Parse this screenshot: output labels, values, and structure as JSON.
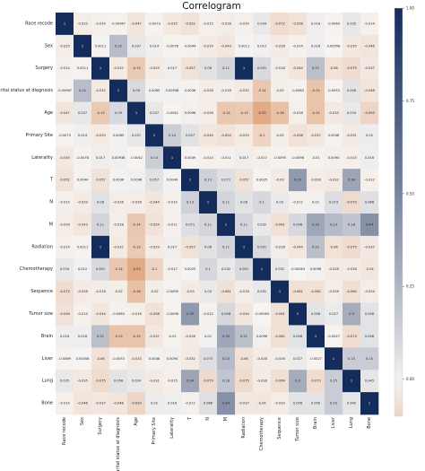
{
  "chart_data": {
    "type": "heatmap",
    "title": "Correlogram",
    "labels": [
      "Race recode",
      "Sex",
      "Surgery",
      "Marital status at diagnosis",
      "Age",
      "Primary Site",
      "Laterality",
      "T",
      "N",
      "M",
      "Radiation",
      "Chemotherapy",
      "Sequence",
      "Tumor size",
      "Brain",
      "Liver",
      "Lung",
      "Bone"
    ],
    "values": [
      [
        1,
        -0.025,
        -0.014,
        -0.00967,
        -0.047,
        -0.0073,
        -0.035,
        -0.052,
        -0.015,
        -0.026,
        -0.014,
        0.034,
        -0.072,
        -0.056,
        0.018,
        -0.0069,
        0.035,
        -0.014
      ],
      [
        -0.025,
        1,
        0.0011,
        0.22,
        0.037,
        0.014,
        -0.0078,
        0.0044,
        -0.029,
        -0.043,
        0.0011,
        0.012,
        -0.028,
        -0.014,
        0.018,
        0.00058,
        -0.035,
        -0.046
      ],
      [
        -0.014,
        0.0011,
        1,
        -0.032,
        -0.13,
        -0.029,
        0.017,
        -0.057,
        0.06,
        0.11,
        1,
        0.091,
        -0.018,
        -0.044,
        0.21,
        -0.06,
        -0.075,
        -0.037
      ],
      [
        -0.00967,
        0.22,
        -0.032,
        1,
        0.09,
        0.0065,
        0.00938,
        0.0036,
        -0.026,
        -0.018,
        -0.032,
        -0.14,
        -0.02,
        -0.0083,
        -0.15,
        -0.0053,
        0.056,
        -0.048
      ],
      [
        -0.047,
        0.037,
        -0.13,
        0.09,
        1,
        0.037,
        -0.0042,
        0.0096,
        -0.026,
        -0.14,
        -0.13,
        -0.23,
        -0.16,
        -0.016,
        -0.15,
        -0.033,
        0.034,
        -0.093
      ],
      [
        -0.0073,
        0.014,
        -0.029,
        0.0065,
        0.037,
        1,
        0.14,
        0.057,
        -0.044,
        -0.054,
        -0.029,
        -0.1,
        -0.02,
        -0.058,
        -0.037,
        0.0048,
        -0.031,
        0.02
      ],
      [
        -0.035,
        -0.0078,
        0.017,
        0.00938,
        -0.0042,
        0.14,
        1,
        0.0049,
        -0.014,
        -0.011,
        0.017,
        -0.017,
        -0.0095,
        -0.0098,
        -0.01,
        0.0094,
        -0.015,
        0.016
      ],
      [
        -0.052,
        0.0044,
        -0.057,
        0.0036,
        0.0096,
        0.057,
        0.0049,
        1,
        0.13,
        0.071,
        -0.057,
        0.0025,
        -0.03,
        0.39,
        -0.028,
        -0.032,
        0.34,
        -0.012
      ],
      [
        -0.015,
        -0.029,
        0.06,
        -0.026,
        -0.026,
        -0.044,
        -0.014,
        0.13,
        1,
        0.11,
        0.06,
        0.1,
        0.03,
        -0.012,
        0.01,
        0.073,
        -0.079,
        0.066
      ],
      [
        -0.026,
        -0.043,
        0.11,
        -0.018,
        -0.14,
        -0.054,
        -0.011,
        0.071,
        0.11,
        1,
        0.11,
        0.032,
        -0.061,
        0.098,
        0.33,
        0.23,
        0.18,
        0.44
      ],
      [
        -0.014,
        0.0011,
        1,
        -0.032,
        -0.13,
        -0.029,
        0.017,
        -0.057,
        0.06,
        0.11,
        1,
        0.091,
        -0.018,
        -0.044,
        0.21,
        -0.06,
        -0.075,
        -0.037
      ],
      [
        0.034,
        0.012,
        0.091,
        -0.14,
        -0.23,
        -0.1,
        -0.017,
        0.0025,
        0.1,
        0.032,
        0.091,
        1,
        0.032,
        -0.00063,
        0.0096,
        -0.028,
        -0.028,
        -0.04
      ],
      [
        -0.072,
        -0.028,
        -0.018,
        -0.02,
        -0.16,
        -0.02,
        -0.0095,
        -0.03,
        0.03,
        -0.061,
        -0.018,
        0.032,
        1,
        -0.061,
        -0.062,
        -0.026,
        -0.064,
        -0.024
      ],
      [
        -0.056,
        -0.014,
        -0.044,
        -0.0083,
        -0.016,
        -0.058,
        -0.0098,
        0.39,
        -0.012,
        0.098,
        -0.044,
        -0.00063,
        -0.061,
        1,
        0.056,
        0.027,
        0.3,
        0.056
      ],
      [
        0.018,
        0.018,
        0.21,
        -0.15,
        -0.15,
        -0.037,
        -0.01,
        -0.028,
        0.01,
        0.33,
        0.21,
        0.0096,
        -0.062,
        0.056,
        1,
        -0.0027,
        -0.073,
        0.056
      ],
      [
        -0.0069,
        0.00058,
        -0.06,
        -0.0053,
        -0.033,
        0.0048,
        0.0094,
        -0.032,
        0.073,
        0.23,
        -0.06,
        -0.028,
        -0.026,
        0.027,
        -0.0027,
        1,
        0.15,
        0.15
      ],
      [
        0.035,
        -0.035,
        -0.075,
        0.056,
        0.034,
        -0.031,
        -0.015,
        0.34,
        -0.079,
        0.18,
        -0.075,
        -0.028,
        -0.064,
        0.3,
        -0.073,
        0.15,
        1,
        0.045
      ],
      [
        -0.014,
        -0.046,
        -0.037,
        -0.048,
        -0.093,
        0.02,
        0.016,
        -0.012,
        0.066,
        0.44,
        -0.037,
        -0.04,
        -0.024,
        0.056,
        0.056,
        0.15,
        0.045,
        1
      ]
    ],
    "colorbar_ticks": [
      1.0,
      0.75,
      0.5,
      0.25,
      0.0
    ],
    "colormap": {
      "high": "#142c5c",
      "mid": "#f6f4f2",
      "low": "#e0a47c"
    }
  }
}
